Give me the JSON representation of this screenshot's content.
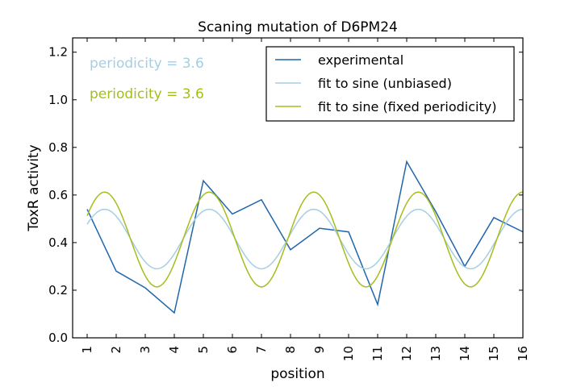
{
  "chart_data": {
    "type": "line",
    "title": "Scaning mutation of D6PM24",
    "xlabel": "position",
    "ylabel": "ToxR activity",
    "xlim": [
      0.5,
      16
    ],
    "ylim": [
      0,
      1.26
    ],
    "x_ticks": [
      "1",
      "2",
      "3",
      "4",
      "5",
      "6",
      "7",
      "8",
      "9",
      "10",
      "11",
      "12",
      "13",
      "14",
      "15",
      "16"
    ],
    "y_ticks": [
      "0.0",
      "0.2",
      "0.4",
      "0.6",
      "0.8",
      "1.0",
      "1.2"
    ],
    "grid": false,
    "legend_position": "top-right",
    "annotations": [
      {
        "text": "periodicity = 3.6",
        "color": "#a6cee3"
      },
      {
        "text": "periodicity = 3.6",
        "color": "#a6bd1c"
      }
    ],
    "series": [
      {
        "name": "experimental",
        "color": "#2166ac",
        "x": [
          1,
          2,
          3,
          4,
          5,
          6,
          7,
          8,
          9,
          10,
          11,
          12,
          13,
          14,
          15,
          16
        ],
        "values": [
          0.54,
          0.28,
          0.21,
          0.105,
          0.66,
          0.52,
          0.58,
          0.37,
          0.46,
          0.445,
          0.14,
          0.74,
          0.53,
          0.3,
          0.505,
          0.445
        ]
      },
      {
        "name": "fit to sine (unbiased)",
        "color": "#a6cee3",
        "sine": {
          "mean": 0.415,
          "amplitude": 0.125,
          "period": 3.6,
          "peak_x": 1.6
        },
        "x_range": [
          1,
          16
        ]
      },
      {
        "name": "fit to sine (fixed periodicity)",
        "color": "#a6bd1c",
        "sine": {
          "mean": 0.413,
          "amplitude": 0.199,
          "period": 3.6,
          "peak_x": 1.6
        },
        "x_range": [
          1,
          16
        ]
      }
    ]
  }
}
